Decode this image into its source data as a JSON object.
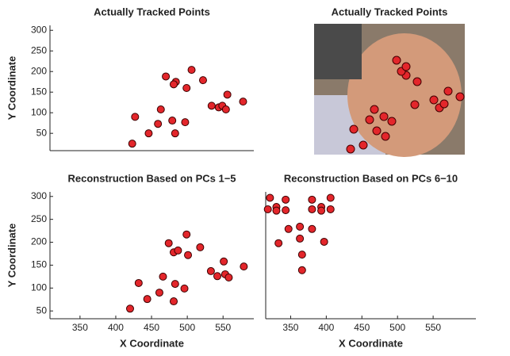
{
  "chart_data": [
    {
      "type": "scatter",
      "title": "Actually Tracked Points",
      "y_label": "Y Coordinate",
      "color": "#e3262b",
      "x": [
        423,
        427,
        446,
        459,
        463,
        479,
        483,
        497,
        470,
        484,
        481,
        499,
        506,
        522,
        534,
        544,
        549,
        556,
        554,
        578
      ],
      "values": [
        25,
        90,
        50,
        73,
        108,
        81,
        50,
        77,
        188,
        175,
        169,
        160,
        204,
        179,
        117,
        113,
        117,
        144,
        108,
        127
      ],
      "xlim": [
        308,
        593
      ],
      "ylim": [
        8,
        312
      ],
      "yticks": [
        50,
        100,
        150,
        200,
        250,
        300
      ]
    },
    {
      "type": "scatter",
      "title": "Reconstruction Based on PCs 1−5",
      "x_label": "X Coordinate",
      "y_label": "Y Coordinate",
      "color": "#e3262b",
      "x": [
        420,
        432,
        444,
        461,
        466,
        474,
        481,
        481,
        483,
        487,
        496,
        499,
        501,
        518,
        533,
        542,
        551,
        553,
        558,
        579
      ],
      "values": [
        55,
        111,
        76,
        90,
        125,
        198,
        71,
        178,
        109,
        182,
        99,
        217,
        172,
        189,
        137,
        126,
        158,
        130,
        123,
        147
      ],
      "xlim": [
        308,
        593
      ],
      "ylim": [
        33,
        310
      ],
      "xticks": [
        350,
        400,
        450,
        500,
        550
      ],
      "yticks": [
        50,
        100,
        150,
        200,
        250,
        300
      ]
    },
    {
      "type": "scatter",
      "title": "Reconstruction Based on PCs 6−10",
      "x_label": "X Coordinate",
      "color": "#e3262b",
      "x": [
        321,
        318,
        330,
        330,
        343,
        343,
        380,
        380,
        393,
        393,
        406,
        406,
        347,
        363,
        380,
        363,
        333,
        397,
        366,
        366
      ],
      "values": [
        297,
        272,
        277,
        269,
        293,
        270,
        293,
        272,
        277,
        269,
        297,
        272,
        229,
        234,
        229,
        208,
        198,
        201,
        173,
        139
      ],
      "xlim": [
        315,
        610
      ],
      "ylim": [
        33,
        310
      ],
      "xticks": [
        350,
        400,
        450,
        500,
        550
      ]
    }
  ],
  "photo": {
    "title": "Actually Tracked Points"
  }
}
